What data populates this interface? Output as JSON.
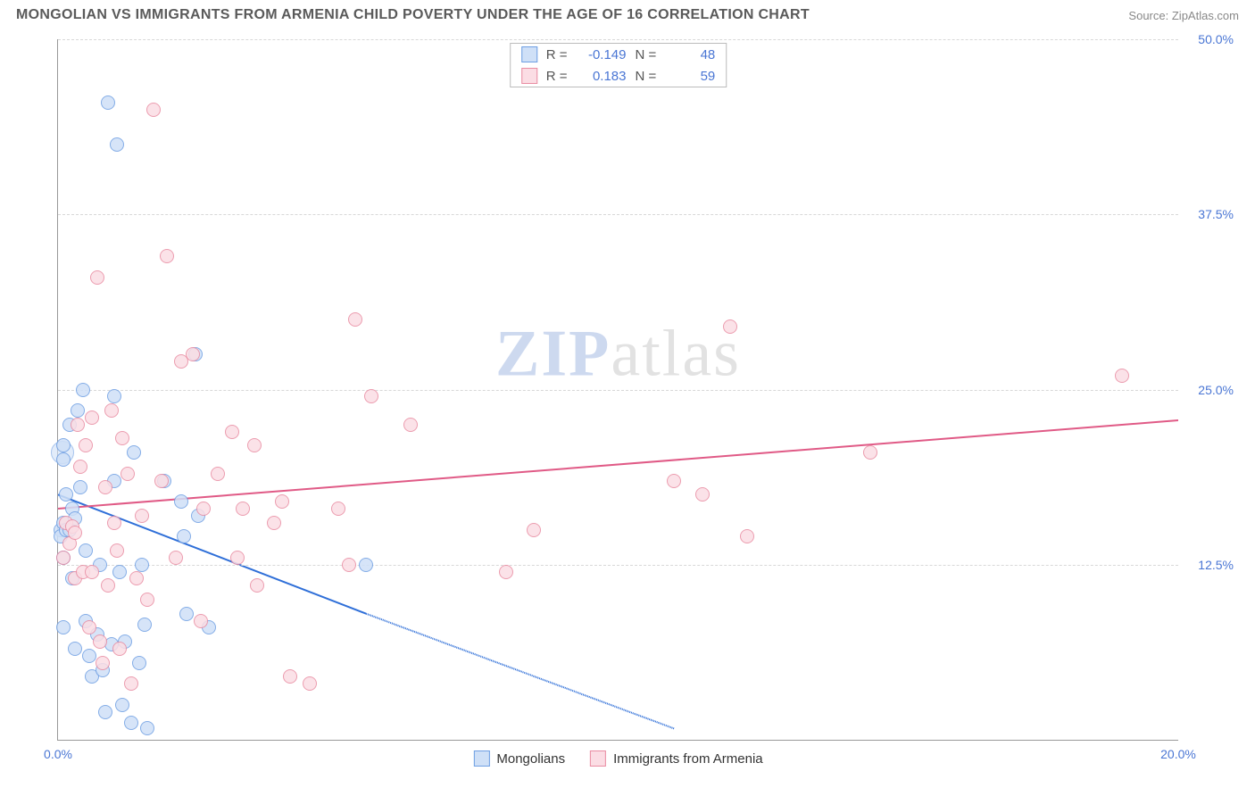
{
  "header": {
    "title": "MONGOLIAN VS IMMIGRANTS FROM ARMENIA CHILD POVERTY UNDER THE AGE OF 16 CORRELATION CHART",
    "source_label": "Source:",
    "source_name": "ZipAtlas.com"
  },
  "chart": {
    "type": "scatter",
    "ylabel": "Child Poverty Under the Age of 16",
    "watermark_a": "ZIP",
    "watermark_b": "atlas",
    "xlim": [
      0,
      20
    ],
    "ylim": [
      0,
      50
    ],
    "yticks": [
      {
        "v": 12.5,
        "label": "12.5%"
      },
      {
        "v": 25.0,
        "label": "25.0%"
      },
      {
        "v": 37.5,
        "label": "37.5%"
      },
      {
        "v": 50.0,
        "label": "50.0%"
      }
    ],
    "xticks": [
      {
        "v": 0,
        "label": "0.0%"
      },
      {
        "v": 20,
        "label": "20.0%"
      }
    ],
    "grid_color": "#d8d8d8",
    "background_color": "#ffffff",
    "marker_radius": 8,
    "marker_opacity": 0.85,
    "series": [
      {
        "name": "Mongolians",
        "color_fill": "#cfe0f7",
        "color_stroke": "#6f9fe3",
        "R": "-0.149",
        "N": "48",
        "trend": {
          "x1": 0,
          "y1": 17.5,
          "x2_solid": 5.5,
          "y2_solid": 9.0,
          "x2": 11.0,
          "y2": 0.8,
          "color": "#2f6fd8",
          "width": 2
        },
        "points": [
          [
            0.05,
            15.0
          ],
          [
            0.05,
            14.5
          ],
          [
            0.1,
            20.0
          ],
          [
            0.1,
            21.0
          ],
          [
            0.1,
            15.5
          ],
          [
            0.1,
            13.0
          ],
          [
            0.1,
            8.0
          ],
          [
            0.15,
            17.5
          ],
          [
            0.15,
            15.0
          ],
          [
            0.2,
            15.0
          ],
          [
            0.2,
            22.5
          ],
          [
            0.25,
            16.5
          ],
          [
            0.25,
            11.5
          ],
          [
            0.3,
            6.5
          ],
          [
            0.3,
            15.8
          ],
          [
            0.35,
            23.5
          ],
          [
            0.4,
            18.0
          ],
          [
            0.45,
            25.0
          ],
          [
            0.5,
            13.5
          ],
          [
            0.5,
            8.5
          ],
          [
            0.55,
            6.0
          ],
          [
            0.6,
            4.5
          ],
          [
            0.7,
            7.5
          ],
          [
            0.75,
            12.5
          ],
          [
            0.8,
            5.0
          ],
          [
            0.85,
            2.0
          ],
          [
            0.9,
            45.5
          ],
          [
            0.95,
            6.8
          ],
          [
            1.0,
            24.5
          ],
          [
            1.0,
            18.5
          ],
          [
            1.05,
            42.5
          ],
          [
            1.1,
            12.0
          ],
          [
            1.15,
            2.5
          ],
          [
            1.2,
            7.0
          ],
          [
            1.3,
            1.2
          ],
          [
            1.35,
            20.5
          ],
          [
            1.45,
            5.5
          ],
          [
            1.5,
            12.5
          ],
          [
            1.55,
            8.2
          ],
          [
            1.6,
            0.8
          ],
          [
            1.9,
            18.5
          ],
          [
            2.2,
            17.0
          ],
          [
            2.25,
            14.5
          ],
          [
            2.3,
            9.0
          ],
          [
            2.45,
            27.5
          ],
          [
            2.5,
            16.0
          ],
          [
            2.7,
            8.0
          ],
          [
            5.5,
            12.5
          ]
        ]
      },
      {
        "name": "Immigrants from Armenia",
        "color_fill": "#fbdde4",
        "color_stroke": "#e98ca2",
        "R": "0.183",
        "N": "59",
        "trend": {
          "x1": 0,
          "y1": 16.5,
          "x2_solid": 20,
          "y2_solid": 22.8,
          "x2": 20,
          "y2": 22.8,
          "color": "#e05a86",
          "width": 2
        },
        "points": [
          [
            0.1,
            13.0
          ],
          [
            0.15,
            15.5
          ],
          [
            0.2,
            14.0
          ],
          [
            0.25,
            15.2
          ],
          [
            0.3,
            14.8
          ],
          [
            0.3,
            11.5
          ],
          [
            0.35,
            22.5
          ],
          [
            0.4,
            19.5
          ],
          [
            0.45,
            12.0
          ],
          [
            0.5,
            21.0
          ],
          [
            0.55,
            8.0
          ],
          [
            0.6,
            23.0
          ],
          [
            0.6,
            12.0
          ],
          [
            0.7,
            33.0
          ],
          [
            0.75,
            7.0
          ],
          [
            0.8,
            5.5
          ],
          [
            0.85,
            18.0
          ],
          [
            0.9,
            11.0
          ],
          [
            0.95,
            23.5
          ],
          [
            1.0,
            15.5
          ],
          [
            1.05,
            13.5
          ],
          [
            1.1,
            6.5
          ],
          [
            1.15,
            21.5
          ],
          [
            1.25,
            19.0
          ],
          [
            1.3,
            4.0
          ],
          [
            1.4,
            11.5
          ],
          [
            1.5,
            16.0
          ],
          [
            1.6,
            10.0
          ],
          [
            1.7,
            45.0
          ],
          [
            1.85,
            18.5
          ],
          [
            1.95,
            34.5
          ],
          [
            2.1,
            13.0
          ],
          [
            2.2,
            27.0
          ],
          [
            2.4,
            27.5
          ],
          [
            2.55,
            8.5
          ],
          [
            2.6,
            16.5
          ],
          [
            2.85,
            19.0
          ],
          [
            3.1,
            22.0
          ],
          [
            3.2,
            13.0
          ],
          [
            3.3,
            16.5
          ],
          [
            3.5,
            21.0
          ],
          [
            3.55,
            11.0
          ],
          [
            3.85,
            15.5
          ],
          [
            4.0,
            17.0
          ],
          [
            4.15,
            4.5
          ],
          [
            4.5,
            4.0
          ],
          [
            5.0,
            16.5
          ],
          [
            5.2,
            12.5
          ],
          [
            5.3,
            30.0
          ],
          [
            5.6,
            24.5
          ],
          [
            6.3,
            22.5
          ],
          [
            8.0,
            12.0
          ],
          [
            8.5,
            15.0
          ],
          [
            11.0,
            18.5
          ],
          [
            11.5,
            17.5
          ],
          [
            12.0,
            29.5
          ],
          [
            12.3,
            14.5
          ],
          [
            14.5,
            20.5
          ],
          [
            19.0,
            26.0
          ]
        ]
      }
    ]
  }
}
